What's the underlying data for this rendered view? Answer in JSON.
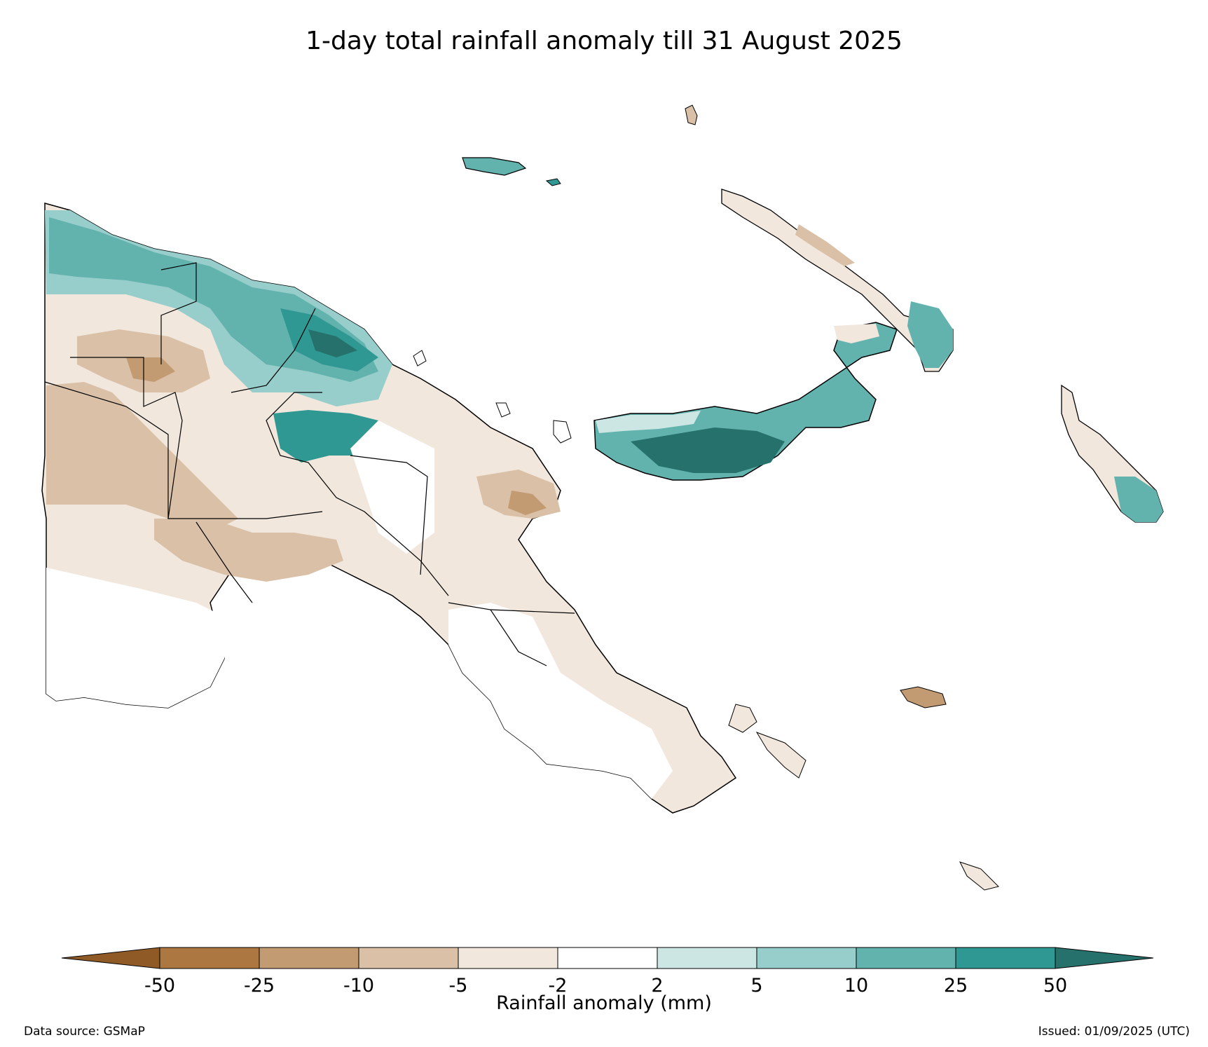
{
  "title": "1-day total rainfall anomaly till 31 August 2025",
  "colorbar": {
    "label": "Rainfall anomaly (mm)",
    "tick_labels": [
      "-50",
      "-25",
      "-10",
      "-5",
      "-2",
      "2",
      "5",
      "10",
      "25",
      "50"
    ],
    "extend": "both",
    "colors": {
      "below_-50": "#8f5a26",
      "-50_-25": "#ad7741",
      "-25_-10": "#c39b73",
      "-10_-5": "#d9c0a7",
      "-5_-2": "#f1e7dd",
      "-2_2": "#ffffff",
      "2_5": "#cce6e4",
      "5_10": "#97cdca",
      "10_25": "#62b2ae",
      "25_50": "#2f9892",
      "above_50": "#26716c"
    }
  },
  "footer": {
    "data_source": "Data source: GSMaP",
    "issued": "Issued: 01/09/2025 (UTC)"
  }
}
